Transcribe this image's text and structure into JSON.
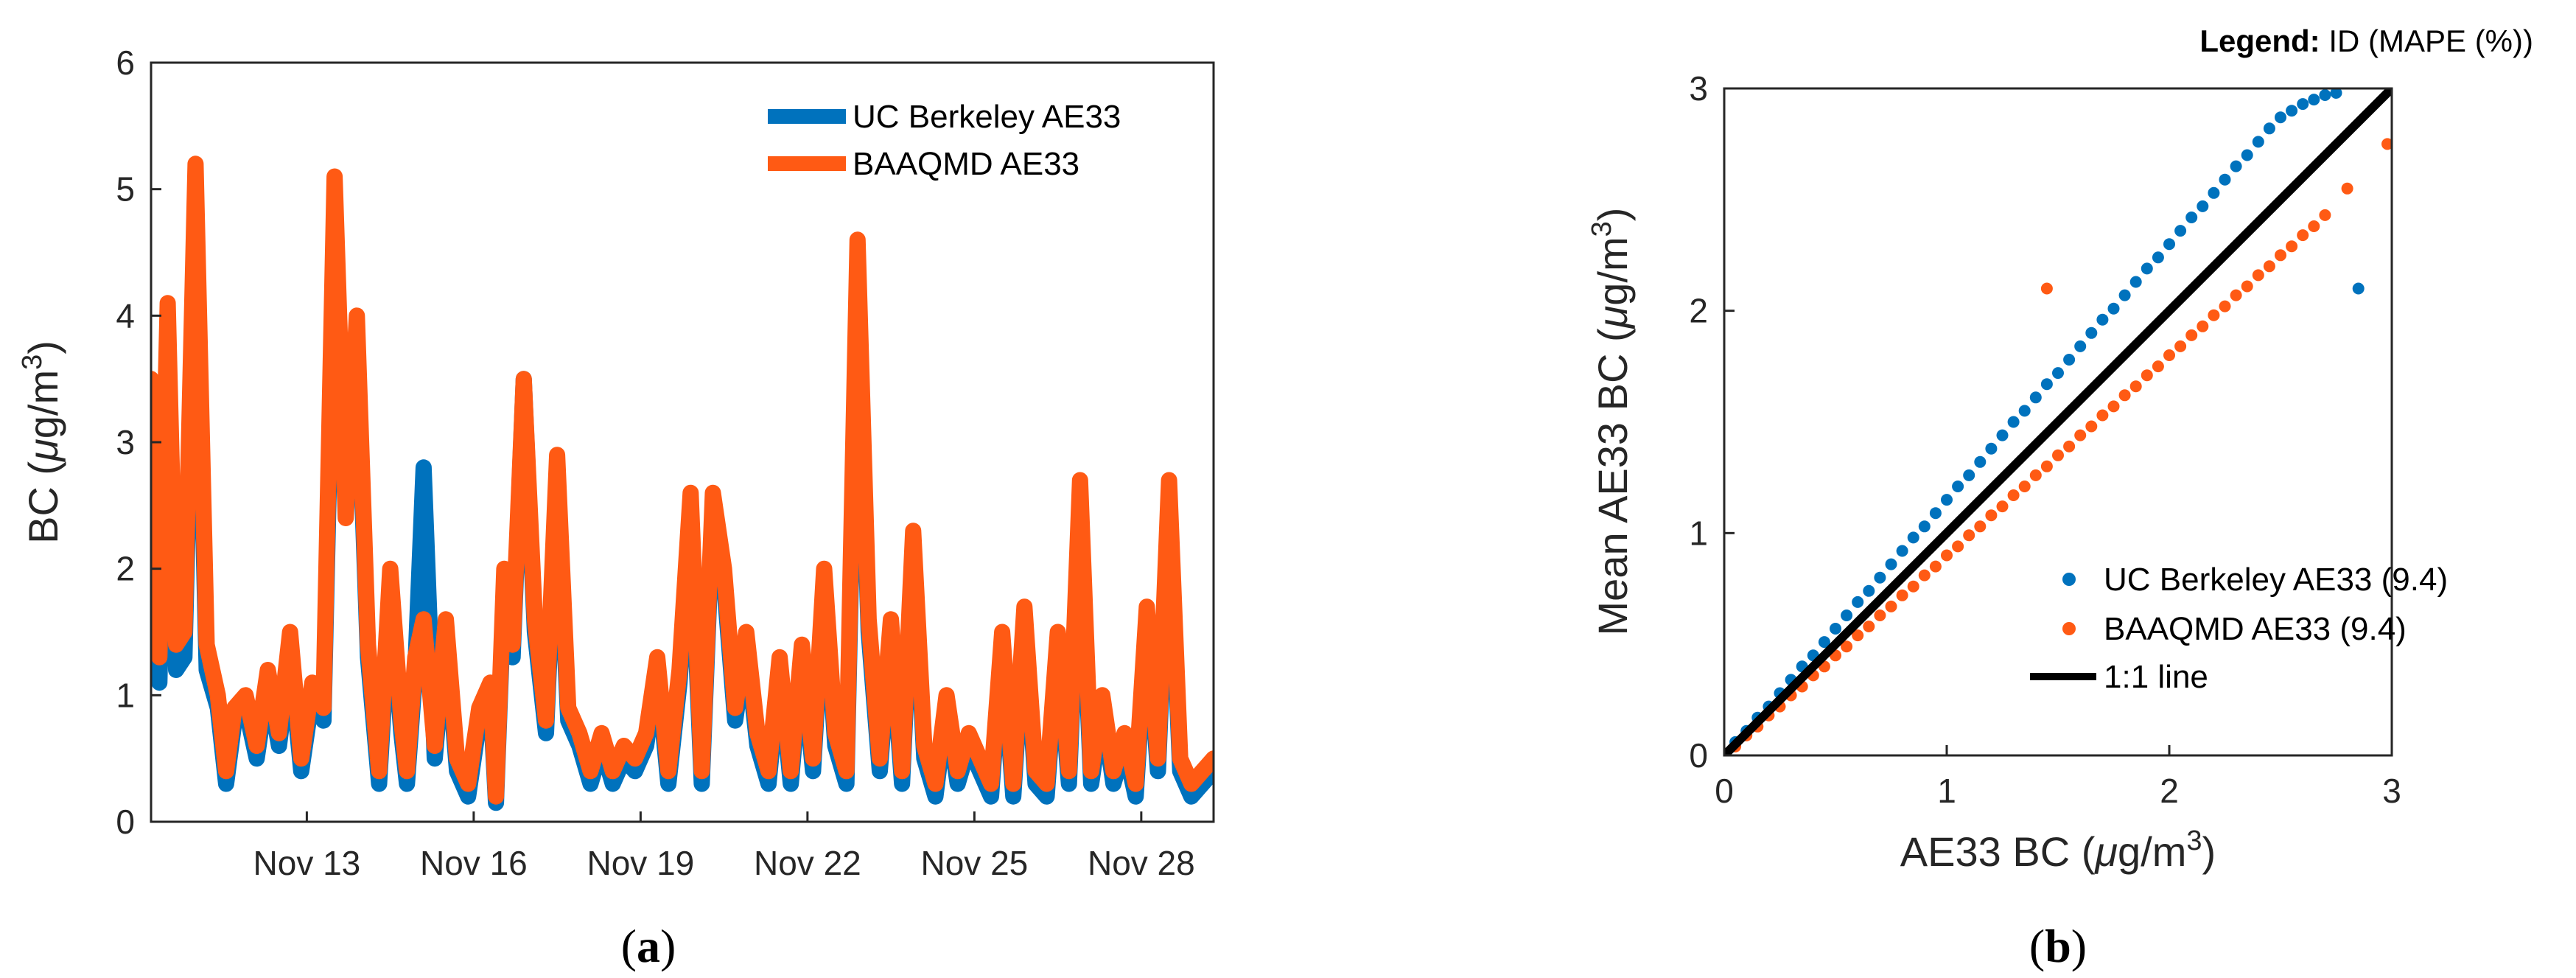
{
  "chart_data": [
    {
      "panel": "(a)",
      "type": "line",
      "ylabel_prefix": "BC (",
      "ylabel_mu": "μ",
      "ylabel_unit": "g/m",
      "ylabel_sup": "3",
      "ylabel_suffix": ")",
      "xlim": [
        10.2,
        29.3
      ],
      "ylim": [
        0,
        6
      ],
      "yticks": [
        "0",
        "1",
        "2",
        "3",
        "4",
        "5",
        "6"
      ],
      "xticks": [
        {
          "value": 13,
          "label": "Nov 13"
        },
        {
          "value": 16,
          "label": "Nov 16"
        },
        {
          "value": 19,
          "label": "Nov 19"
        },
        {
          "value": 22,
          "label": "Nov 22"
        },
        {
          "value": 25,
          "label": "Nov 25"
        },
        {
          "value": 28,
          "label": "Nov 28"
        }
      ],
      "legend_position": "top-right",
      "series": [
        {
          "name": "UC Berkeley AE33",
          "color": "#0072BD",
          "x": [
            10.2,
            10.35,
            10.5,
            10.65,
            10.8,
            11.0,
            11.2,
            11.4,
            11.55,
            11.7,
            11.9,
            12.1,
            12.3,
            12.5,
            12.7,
            12.9,
            13.1,
            13.3,
            13.5,
            13.7,
            13.9,
            14.1,
            14.3,
            14.5,
            14.7,
            14.8,
            14.95,
            15.1,
            15.3,
            15.5,
            15.7,
            15.9,
            16.1,
            16.3,
            16.4,
            16.55,
            16.7,
            16.9,
            17.1,
            17.3,
            17.5,
            17.7,
            17.9,
            18.1,
            18.3,
            18.5,
            18.7,
            18.9,
            19.1,
            19.3,
            19.5,
            19.7,
            19.9,
            20.1,
            20.3,
            20.5,
            20.7,
            20.9,
            21.1,
            21.3,
            21.5,
            21.7,
            21.9,
            22.1,
            22.3,
            22.5,
            22.7,
            22.9,
            23.1,
            23.3,
            23.5,
            23.7,
            23.9,
            24.1,
            24.3,
            24.5,
            24.7,
            24.9,
            25.1,
            25.3,
            25.5,
            25.7,
            25.9,
            26.1,
            26.3,
            26.5,
            26.7,
            26.9,
            27.1,
            27.3,
            27.5,
            27.7,
            27.9,
            28.1,
            28.3,
            28.5,
            28.7,
            28.9,
            29.1,
            29.3
          ],
          "y": [
            2.6,
            1.1,
            3.9,
            1.2,
            1.3,
            4.9,
            1.2,
            0.9,
            0.3,
            0.8,
            0.9,
            0.5,
            1.1,
            0.6,
            1.3,
            0.4,
            1.0,
            0.8,
            4.7,
            2.5,
            3.8,
            1.3,
            0.3,
            1.8,
            0.7,
            0.3,
            1.2,
            2.8,
            0.5,
            1.5,
            0.4,
            0.2,
            0.8,
            1.0,
            0.15,
            1.9,
            1.3,
            3.5,
            1.5,
            0.7,
            2.7,
            0.8,
            0.6,
            0.3,
            0.6,
            0.3,
            0.5,
            0.4,
            0.6,
            1.2,
            0.3,
            1.1,
            2.4,
            0.3,
            2.5,
            1.9,
            0.8,
            1.4,
            0.6,
            0.3,
            1.2,
            0.3,
            1.3,
            0.4,
            1.9,
            0.6,
            0.3,
            4.3,
            1.5,
            0.4,
            1.5,
            0.3,
            2.2,
            0.5,
            0.2,
            0.9,
            0.3,
            0.6,
            0.4,
            0.2,
            1.4,
            0.2,
            1.6,
            0.3,
            0.2,
            1.4,
            0.3,
            2.4,
            0.3,
            0.9,
            0.3,
            0.6,
            0.2,
            1.6,
            0.4,
            2.5,
            0.4,
            0.2,
            0.3,
            0.4
          ]
        },
        {
          "name": "BAAQMD AE33",
          "color": "#FF5A14",
          "x": [
            10.2,
            10.35,
            10.5,
            10.65,
            10.8,
            11.0,
            11.2,
            11.4,
            11.55,
            11.7,
            11.9,
            12.1,
            12.3,
            12.5,
            12.7,
            12.9,
            13.1,
            13.3,
            13.5,
            13.7,
            13.9,
            14.1,
            14.3,
            14.5,
            14.7,
            14.8,
            14.95,
            15.1,
            15.3,
            15.5,
            15.7,
            15.9,
            16.1,
            16.3,
            16.4,
            16.55,
            16.7,
            16.9,
            17.1,
            17.3,
            17.5,
            17.7,
            17.9,
            18.1,
            18.3,
            18.5,
            18.7,
            18.9,
            19.1,
            19.3,
            19.5,
            19.7,
            19.9,
            20.1,
            20.3,
            20.5,
            20.7,
            20.9,
            21.1,
            21.3,
            21.5,
            21.7,
            21.9,
            22.1,
            22.3,
            22.5,
            22.7,
            22.9,
            23.1,
            23.3,
            23.5,
            23.7,
            23.9,
            24.1,
            24.3,
            24.5,
            24.7,
            24.9,
            25.1,
            25.3,
            25.5,
            25.7,
            25.9,
            26.1,
            26.3,
            26.5,
            26.7,
            26.9,
            27.1,
            27.3,
            27.5,
            27.7,
            27.9,
            28.1,
            28.3,
            28.5,
            28.7,
            28.9,
            29.1,
            29.3
          ],
          "y": [
            3.5,
            1.3,
            4.1,
            1.4,
            1.5,
            5.2,
            1.4,
            1.0,
            0.4,
            0.9,
            1.0,
            0.6,
            1.2,
            0.7,
            1.5,
            0.5,
            1.1,
            0.9,
            5.1,
            2.4,
            4.0,
            1.4,
            0.4,
            2.0,
            0.8,
            0.4,
            1.3,
            1.6,
            0.6,
            1.6,
            0.5,
            0.3,
            0.9,
            1.1,
            0.2,
            2.0,
            1.4,
            3.5,
            1.6,
            0.8,
            2.9,
            0.9,
            0.7,
            0.4,
            0.7,
            0.4,
            0.6,
            0.5,
            0.7,
            1.3,
            0.4,
            1.2,
            2.6,
            0.4,
            2.6,
            2.0,
            0.9,
            1.5,
            0.7,
            0.4,
            1.3,
            0.4,
            1.4,
            0.5,
            2.0,
            0.7,
            0.4,
            4.6,
            1.6,
            0.5,
            1.6,
            0.4,
            2.3,
            0.6,
            0.3,
            1.0,
            0.4,
            0.7,
            0.5,
            0.3,
            1.5,
            0.3,
            1.7,
            0.4,
            0.3,
            1.5,
            0.4,
            2.7,
            0.4,
            1.0,
            0.4,
            0.7,
            0.3,
            1.7,
            0.5,
            2.7,
            0.5,
            0.3,
            0.4,
            0.5
          ]
        }
      ]
    },
    {
      "panel": "(b)",
      "type": "scatter",
      "xlabel_prefix": "AE33 BC (",
      "ylabel_prefix": "Mean AE33 BC (",
      "unit_mu": "μ",
      "unit_text": "g/m",
      "unit_sup": "3",
      "unit_suffix": ")",
      "xlim": [
        0,
        3
      ],
      "ylim": [
        0,
        3
      ],
      "xticks": [
        "0",
        "1",
        "2",
        "3"
      ],
      "yticks": [
        "0",
        "1",
        "2",
        "3"
      ],
      "legend_title_bold": "Legend:",
      "legend_title_rest": " ID (MAPE (%))",
      "legend_position": "bottom-right",
      "series": [
        {
          "name": "UC Berkeley AE33 (9.4)",
          "color": "#0072BD",
          "x": [
            0.05,
            0.1,
            0.15,
            0.2,
            0.25,
            0.3,
            0.35,
            0.4,
            0.45,
            0.5,
            0.55,
            0.6,
            0.65,
            0.7,
            0.75,
            0.8,
            0.85,
            0.9,
            0.95,
            1.0,
            1.05,
            1.1,
            1.15,
            1.2,
            1.25,
            1.3,
            1.35,
            1.4,
            1.45,
            1.5,
            1.55,
            1.6,
            1.65,
            1.7,
            1.75,
            1.8,
            1.85,
            1.9,
            1.95,
            2.0,
            2.05,
            2.1,
            2.15,
            2.2,
            2.25,
            2.3,
            2.35,
            2.4,
            2.45,
            2.5,
            2.55,
            2.6,
            2.65,
            2.7,
            2.75,
            2.85
          ],
          "y": [
            0.06,
            0.11,
            0.17,
            0.22,
            0.28,
            0.34,
            0.4,
            0.45,
            0.51,
            0.57,
            0.63,
            0.69,
            0.74,
            0.8,
            0.86,
            0.92,
            0.98,
            1.03,
            1.09,
            1.15,
            1.21,
            1.26,
            1.32,
            1.38,
            1.44,
            1.5,
            1.55,
            1.61,
            1.67,
            1.72,
            1.78,
            1.84,
            1.9,
            1.96,
            2.01,
            2.07,
            2.13,
            2.19,
            2.24,
            2.3,
            2.36,
            2.42,
            2.47,
            2.53,
            2.59,
            2.65,
            2.7,
            2.76,
            2.82,
            2.87,
            2.9,
            2.93,
            2.95,
            2.97,
            2.98,
            2.1
          ]
        },
        {
          "name": "BAAQMD AE33 (9.4)",
          "color": "#FF5A14",
          "x": [
            0.05,
            0.1,
            0.15,
            0.2,
            0.25,
            0.3,
            0.35,
            0.4,
            0.45,
            0.5,
            0.55,
            0.6,
            0.65,
            0.7,
            0.75,
            0.8,
            0.85,
            0.9,
            0.95,
            1.0,
            1.05,
            1.1,
            1.15,
            1.2,
            1.25,
            1.3,
            1.35,
            1.4,
            1.45,
            1.5,
            1.55,
            1.6,
            1.65,
            1.7,
            1.75,
            1.8,
            1.85,
            1.9,
            1.95,
            2.0,
            2.05,
            2.1,
            2.15,
            2.2,
            2.25,
            2.3,
            2.35,
            2.4,
            2.45,
            2.5,
            2.55,
            2.6,
            2.65,
            2.7,
            2.8,
            2.98,
            1.45
          ],
          "y": [
            0.04,
            0.09,
            0.13,
            0.18,
            0.22,
            0.27,
            0.31,
            0.36,
            0.4,
            0.45,
            0.49,
            0.54,
            0.58,
            0.63,
            0.67,
            0.72,
            0.76,
            0.81,
            0.85,
            0.9,
            0.94,
            0.99,
            1.03,
            1.08,
            1.12,
            1.17,
            1.21,
            1.26,
            1.3,
            1.35,
            1.39,
            1.44,
            1.48,
            1.53,
            1.57,
            1.62,
            1.66,
            1.71,
            1.75,
            1.8,
            1.84,
            1.89,
            1.93,
            1.98,
            2.02,
            2.07,
            2.11,
            2.16,
            2.2,
            2.25,
            2.29,
            2.34,
            2.38,
            2.43,
            2.55,
            2.75,
            2.1
          ]
        },
        {
          "name": "1:1 line",
          "color": "#000000",
          "x": [
            0,
            3
          ],
          "y": [
            0,
            3
          ]
        }
      ]
    }
  ]
}
